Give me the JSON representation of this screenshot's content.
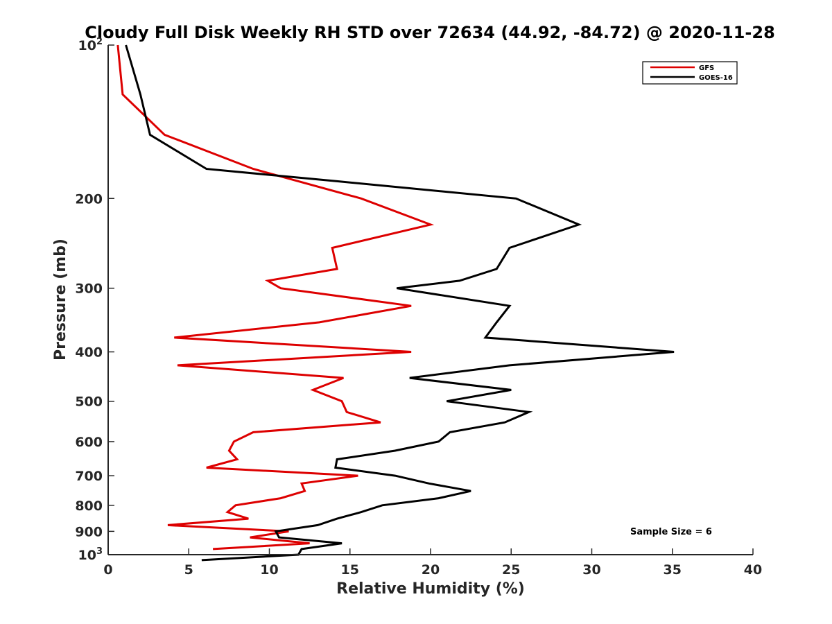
{
  "chart_data": {
    "type": "line",
    "title": "Cloudy Full Disk Weekly RH STD over 72634 (44.92, -84.72) @ 2020-11-28",
    "xlabel": "Relative Humidity (%)",
    "ylabel": "Pressure (mb)",
    "xlim": [
      0,
      40
    ],
    "ylim": [
      100,
      1000
    ],
    "y_scale": "log",
    "y_reversed": true,
    "grid": false,
    "legend_position": "top-right",
    "x_ticks": [
      "0",
      "5",
      "10",
      "15",
      "20",
      "25",
      "30",
      "35",
      "40"
    ],
    "y_ticks": [
      {
        "value": 100,
        "base": "10",
        "sup": "2"
      },
      {
        "value": 200,
        "label": "200"
      },
      {
        "value": 300,
        "label": "300"
      },
      {
        "value": 400,
        "label": "400"
      },
      {
        "value": 500,
        "label": "500"
      },
      {
        "value": 600,
        "label": "600"
      },
      {
        "value": 700,
        "label": "700"
      },
      {
        "value": 800,
        "label": "800"
      },
      {
        "value": 900,
        "label": "900"
      },
      {
        "value": 1000,
        "base": "10",
        "sup": "3"
      }
    ],
    "series": [
      {
        "name": "GFS",
        "color": "#dd0000",
        "points": [
          {
            "p": 100,
            "x": 0.6
          },
          {
            "p": 125,
            "x": 0.9
          },
          {
            "p": 150,
            "x": 3.5
          },
          {
            "p": 175,
            "x": 9.0
          },
          {
            "p": 200,
            "x": 15.7
          },
          {
            "p": 225,
            "x": 20.0
          },
          {
            "p": 250,
            "x": 13.9
          },
          {
            "p": 275,
            "x": 14.2
          },
          {
            "p": 290,
            "x": 9.9
          },
          {
            "p": 300,
            "x": 10.7
          },
          {
            "p": 325,
            "x": 18.8
          },
          {
            "p": 350,
            "x": 13.1
          },
          {
            "p": 375,
            "x": 4.1
          },
          {
            "p": 400,
            "x": 18.8
          },
          {
            "p": 425,
            "x": 4.3
          },
          {
            "p": 450,
            "x": 14.6
          },
          {
            "p": 475,
            "x": 12.7
          },
          {
            "p": 500,
            "x": 14.5
          },
          {
            "p": 525,
            "x": 14.8
          },
          {
            "p": 550,
            "x": 16.9
          },
          {
            "p": 575,
            "x": 9.0
          },
          {
            "p": 600,
            "x": 7.8
          },
          {
            "p": 625,
            "x": 7.5
          },
          {
            "p": 650,
            "x": 8.0
          },
          {
            "p": 675,
            "x": 6.1
          },
          {
            "p": 700,
            "x": 15.5
          },
          {
            "p": 725,
            "x": 12.0
          },
          {
            "p": 750,
            "x": 12.2
          },
          {
            "p": 775,
            "x": 10.7
          },
          {
            "p": 800,
            "x": 7.9
          },
          {
            "p": 825,
            "x": 7.4
          },
          {
            "p": 850,
            "x": 8.7
          },
          {
            "p": 875,
            "x": 3.7
          },
          {
            "p": 900,
            "x": 11.2
          },
          {
            "p": 925,
            "x": 8.8
          },
          {
            "p": 950,
            "x": 12.5
          },
          {
            "p": 975,
            "x": 6.5
          }
        ]
      },
      {
        "name": "GOES-16",
        "color": "#000000",
        "points": [
          {
            "p": 100,
            "x": 1.1
          },
          {
            "p": 125,
            "x": 2.0
          },
          {
            "p": 150,
            "x": 2.6
          },
          {
            "p": 175,
            "x": 6.1
          },
          {
            "p": 185,
            "x": 14.2
          },
          {
            "p": 200,
            "x": 25.3
          },
          {
            "p": 225,
            "x": 29.2
          },
          {
            "p": 250,
            "x": 24.9
          },
          {
            "p": 275,
            "x": 24.1
          },
          {
            "p": 290,
            "x": 21.8
          },
          {
            "p": 300,
            "x": 17.9
          },
          {
            "p": 325,
            "x": 24.9
          },
          {
            "p": 350,
            "x": 24.1
          },
          {
            "p": 375,
            "x": 23.4
          },
          {
            "p": 400,
            "x": 35.1
          },
          {
            "p": 425,
            "x": 24.9
          },
          {
            "p": 450,
            "x": 18.7
          },
          {
            "p": 475,
            "x": 25.0
          },
          {
            "p": 500,
            "x": 21.0
          },
          {
            "p": 525,
            "x": 26.1
          },
          {
            "p": 550,
            "x": 24.6
          },
          {
            "p": 575,
            "x": 21.2
          },
          {
            "p": 600,
            "x": 20.5
          },
          {
            "p": 625,
            "x": 17.8
          },
          {
            "p": 650,
            "x": 14.2
          },
          {
            "p": 675,
            "x": 14.1
          },
          {
            "p": 700,
            "x": 17.8
          },
          {
            "p": 725,
            "x": 19.9
          },
          {
            "p": 750,
            "x": 22.5
          },
          {
            "p": 775,
            "x": 20.5
          },
          {
            "p": 800,
            "x": 17.0
          },
          {
            "p": 825,
            "x": 15.7
          },
          {
            "p": 850,
            "x": 14.2
          },
          {
            "p": 875,
            "x": 13.0
          },
          {
            "p": 900,
            "x": 10.4
          },
          {
            "p": 925,
            "x": 10.6
          },
          {
            "p": 950,
            "x": 14.5
          },
          {
            "p": 975,
            "x": 12.0
          },
          {
            "p": 1000,
            "x": 11.8
          },
          {
            "p": 1025,
            "x": 5.8
          }
        ]
      }
    ],
    "annotations": [
      "Sample Size = 6"
    ]
  }
}
